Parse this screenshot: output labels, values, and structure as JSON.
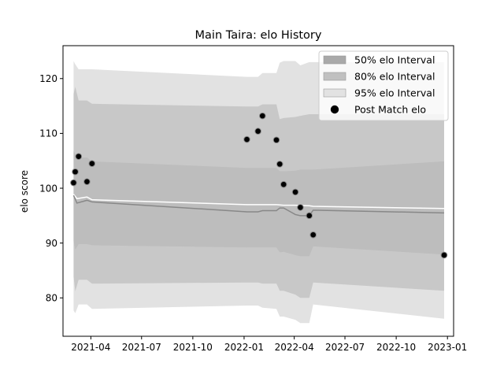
{
  "chart_data": {
    "type": "scatter",
    "title": "Main Taira: elo History",
    "xlabel": "",
    "ylabel": "elo score",
    "xlim": [
      "2021-02-10",
      "2023-01-12"
    ],
    "ylim": [
      73,
      126
    ],
    "x_ticks": [
      "2021-04",
      "2021-07",
      "2021-10",
      "2022-01",
      "2022-04",
      "2022-07",
      "2022-10",
      "2023-01"
    ],
    "y_ticks": [
      80,
      90,
      100,
      110,
      120
    ],
    "grid": false,
    "legend_position": "top-right",
    "legend": [
      {
        "label": "50% elo Interval",
        "kind": "band",
        "color": "#a9a9a9"
      },
      {
        "label": "80% elo Interval",
        "kind": "band",
        "color": "#c0c0c0"
      },
      {
        "label": "95% elo Interval",
        "kind": "band",
        "color": "#e2e2e2"
      },
      {
        "label": "Post Match elo",
        "kind": "marker",
        "color": "#000000"
      }
    ],
    "band_x": [
      "2021-03-01",
      "2021-03-04",
      "2021-03-10",
      "2021-03-25",
      "2021-04-03",
      "2022-01-06",
      "2022-01-26",
      "2022-02-03",
      "2022-02-28",
      "2022-03-06",
      "2022-03-13",
      "2022-04-03",
      "2022-04-12",
      "2022-04-28",
      "2022-05-05",
      "2022-12-26"
    ],
    "series": [
      {
        "name": "95% elo Interval",
        "kind": "band",
        "color": "#e2e2e2",
        "lower": [
          77.7,
          77.2,
          78.8,
          78.8,
          78.0,
          78.6,
          78.6,
          78.2,
          78.0,
          76.6,
          76.6,
          76.0,
          75.4,
          75.4,
          78.8,
          76.2
        ],
        "upper": [
          123.2,
          122.6,
          121.7,
          121.7,
          121.7,
          120.3,
          120.3,
          121.0,
          121.0,
          122.9,
          123.2,
          123.2,
          122.4,
          123.0,
          123.0,
          123.0
        ]
      },
      {
        "name": "80% elo Interval",
        "kind": "band",
        "color": "#c8c8c8",
        "lower": [
          83.9,
          81.2,
          83.3,
          83.3,
          82.6,
          82.8,
          82.8,
          82.6,
          82.6,
          81.3,
          81.3,
          80.6,
          80.0,
          80.0,
          82.8,
          81.3
        ],
        "upper": [
          117.2,
          118.5,
          116.0,
          116.0,
          115.4,
          114.9,
          114.9,
          115.3,
          115.3,
          112.6,
          112.8,
          113.0,
          113.2,
          113.5,
          113.5,
          113.5
        ]
      },
      {
        "name": "50% elo Interval",
        "kind": "band",
        "color": "#bdbdbd",
        "lower": [
          90.4,
          88.8,
          89.8,
          89.8,
          89.6,
          89.2,
          89.2,
          89.2,
          89.2,
          88.3,
          88.4,
          87.8,
          87.6,
          87.6,
          89.4,
          87.9
        ],
        "upper": [
          106.8,
          106.2,
          105.6,
          105.6,
          104.9,
          103.7,
          103.7,
          103.7,
          103.7,
          103.1,
          103.1,
          103.2,
          103.4,
          103.4,
          103.4,
          104.9
        ]
      },
      {
        "name": "Post Match elo",
        "kind": "markers",
        "color": "#000000",
        "x": [
          "2021-03-01",
          "2021-03-04",
          "2021-03-10",
          "2021-03-25",
          "2021-04-03",
          "2022-01-06",
          "2022-01-26",
          "2022-02-03",
          "2022-02-28",
          "2022-03-06",
          "2022-03-13",
          "2022-04-03",
          "2022-04-12",
          "2022-04-28",
          "2022-05-05",
          "2022-12-26"
        ],
        "y": [
          101.0,
          103.0,
          105.8,
          101.2,
          104.5,
          108.9,
          110.4,
          113.2,
          108.8,
          104.4,
          100.7,
          99.3,
          96.5,
          95.0,
          91.5,
          87.8
        ]
      },
      {
        "name": "mean",
        "kind": "line",
        "color": "#ffffff",
        "x": [
          "2021-03-01",
          "2021-03-07",
          "2021-03-25",
          "2021-04-03",
          "2022-01-06",
          "2022-02-28",
          "2022-03-13",
          "2022-04-03",
          "2022-04-28",
          "2022-05-05",
          "2022-12-26"
        ],
        "y": [
          98.9,
          98.1,
          98.4,
          97.9,
          97.0,
          97.0,
          96.9,
          96.9,
          96.8,
          96.7,
          96.3
        ]
      },
      {
        "name": "median",
        "kind": "line",
        "color": "#888888",
        "x": [
          "2021-03-01",
          "2021-03-07",
          "2021-03-25",
          "2021-04-03",
          "2022-01-06",
          "2022-01-26",
          "2022-02-03",
          "2022-02-28",
          "2022-03-06",
          "2022-03-13",
          "2022-04-03",
          "2022-04-12",
          "2022-04-28",
          "2022-05-05",
          "2022-12-26"
        ],
        "y": [
          98.7,
          97.3,
          97.8,
          97.5,
          95.7,
          95.7,
          95.9,
          95.9,
          96.4,
          96.4,
          95.2,
          95.0,
          95.0,
          96.0,
          95.5
        ]
      }
    ]
  }
}
